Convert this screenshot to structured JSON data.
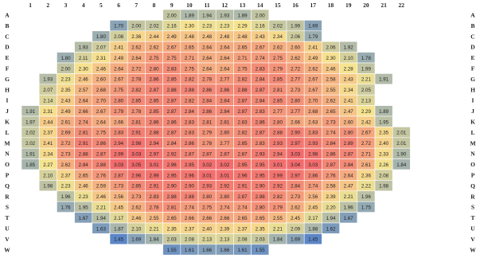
{
  "chart_data": {
    "type": "heatmap",
    "title": "",
    "columns": [
      "1",
      "2",
      "3",
      "4",
      "5",
      "6",
      "7",
      "8",
      "9",
      "10",
      "11",
      "12",
      "13",
      "14",
      "15",
      "16",
      "17",
      "18",
      "19",
      "20",
      "21",
      "22"
    ],
    "rows": [
      "A",
      "B",
      "C",
      "D",
      "E",
      "F",
      "G",
      "H",
      "I",
      "J",
      "K",
      "L",
      "M",
      "N",
      "O",
      "P",
      "Q",
      "R",
      "S",
      "T",
      "U",
      "V",
      "W"
    ],
    "colormap": {
      "low": "#5b86c7",
      "mid": "#f6e590",
      "high": "#f2616a"
    },
    "value_range": [
      1.45,
      3.1
    ],
    "cells": [
      [
        null,
        null,
        null,
        null,
        null,
        null,
        null,
        null,
        2.0,
        1.89,
        1.94,
        1.93,
        1.89,
        2.0,
        null,
        null,
        null,
        null,
        null,
        null,
        null,
        null
      ],
      [
        null,
        null,
        null,
        null,
        null,
        1.7,
        2.0,
        2.02,
        2.16,
        2.3,
        2.23,
        2.23,
        2.29,
        2.16,
        2.02,
        1.99,
        1.69,
        null,
        null,
        null,
        null,
        null
      ],
      [
        null,
        null,
        null,
        null,
        1.8,
        2.08,
        2.36,
        2.44,
        2.49,
        2.48,
        2.48,
        2.48,
        2.48,
        2.43,
        2.34,
        2.06,
        1.79,
        null,
        null,
        null,
        null,
        null
      ],
      [
        null,
        null,
        null,
        1.93,
        2.07,
        2.41,
        2.62,
        2.62,
        2.67,
        2.65,
        2.64,
        2.64,
        2.65,
        2.67,
        2.62,
        2.6,
        2.41,
        2.06,
        1.92,
        null,
        null,
        null
      ],
      [
        null,
        null,
        1.8,
        2.11,
        2.31,
        2.49,
        2.64,
        2.75,
        2.75,
        2.71,
        2.64,
        2.64,
        2.71,
        2.74,
        2.75,
        2.62,
        2.49,
        2.3,
        2.1,
        1.78,
        null,
        null
      ],
      [
        null,
        null,
        2.0,
        2.3,
        2.46,
        2.64,
        2.72,
        2.8,
        2.83,
        2.75,
        2.64,
        2.64,
        2.75,
        2.83,
        2.79,
        2.72,
        2.62,
        2.46,
        2.28,
        1.99,
        null,
        null
      ],
      [
        null,
        1.93,
        2.23,
        2.46,
        2.6,
        2.67,
        2.78,
        2.86,
        2.85,
        2.82,
        2.78,
        2.77,
        2.82,
        2.84,
        2.85,
        2.77,
        2.67,
        2.58,
        2.43,
        2.21,
        1.91,
        null
      ],
      [
        null,
        2.07,
        2.35,
        2.57,
        2.68,
        2.75,
        2.82,
        2.87,
        2.88,
        2.88,
        2.86,
        2.86,
        2.88,
        2.87,
        2.81,
        2.73,
        2.67,
        2.55,
        2.34,
        2.05,
        null,
        null
      ],
      [
        null,
        2.14,
        2.43,
        2.64,
        2.7,
        2.8,
        2.85,
        2.85,
        2.87,
        2.82,
        2.84,
        2.84,
        2.87,
        2.84,
        2.85,
        2.8,
        2.7,
        2.62,
        2.41,
        2.13,
        null,
        null
      ],
      [
        1.91,
        2.31,
        2.49,
        2.66,
        2.67,
        2.79,
        2.78,
        2.85,
        2.87,
        2.84,
        2.86,
        2.84,
        2.87,
        2.83,
        2.77,
        2.77,
        2.68,
        2.65,
        2.47,
        2.29,
        1.89,
        null
      ],
      [
        1.97,
        2.44,
        2.61,
        2.74,
        2.64,
        2.66,
        2.81,
        2.86,
        2.86,
        2.83,
        2.81,
        2.81,
        2.83,
        2.86,
        2.8,
        2.66,
        2.63,
        2.73,
        2.6,
        2.42,
        1.95,
        null
      ],
      [
        2.02,
        2.37,
        2.69,
        2.81,
        2.75,
        2.83,
        2.91,
        2.88,
        2.87,
        2.83,
        2.79,
        2.8,
        2.82,
        2.87,
        2.88,
        2.9,
        2.83,
        2.74,
        2.8,
        2.67,
        2.35,
        2.01
      ],
      [
        2.02,
        2.41,
        2.72,
        2.91,
        2.86,
        2.94,
        2.98,
        2.94,
        2.84,
        2.86,
        2.78,
        2.77,
        2.85,
        2.83,
        2.93,
        2.97,
        2.93,
        2.84,
        2.89,
        2.72,
        2.4,
        2.01
      ],
      [
        1.91,
        2.34,
        2.73,
        2.88,
        2.87,
        2.99,
        3.03,
        2.97,
        2.92,
        2.87,
        2.87,
        2.87,
        2.87,
        2.93,
        2.94,
        3.03,
        2.98,
        2.86,
        2.87,
        2.71,
        2.33,
        1.9
      ],
      [
        1.85,
        2.27,
        2.62,
        2.84,
        2.88,
        3.03,
        3.05,
        3.01,
        2.96,
        2.95,
        3.02,
        3.02,
        2.95,
        2.95,
        3.01,
        3.04,
        3.03,
        2.87,
        2.84,
        2.61,
        2.26,
        1.84
      ],
      [
        null,
        2.1,
        2.37,
        2.65,
        2.76,
        2.87,
        2.96,
        2.99,
        2.95,
        2.96,
        3.01,
        3.01,
        2.96,
        2.95,
        2.99,
        2.97,
        2.86,
        2.76,
        2.64,
        2.36,
        2.08,
        null
      ],
      [
        null,
        1.98,
        2.23,
        2.46,
        2.59,
        2.73,
        2.85,
        2.91,
        2.9,
        2.9,
        2.93,
        2.92,
        2.91,
        2.9,
        2.92,
        2.84,
        2.74,
        2.58,
        2.47,
        2.22,
        1.98,
        null
      ],
      [
        null,
        null,
        1.96,
        2.23,
        2.46,
        2.56,
        2.73,
        2.83,
        2.88,
        2.88,
        2.8,
        2.8,
        2.87,
        2.88,
        2.82,
        2.73,
        2.56,
        2.39,
        2.21,
        1.96,
        null,
        null
      ],
      [
        null,
        null,
        1.76,
        1.95,
        2.21,
        2.45,
        2.62,
        2.78,
        2.81,
        2.74,
        2.75,
        2.74,
        2.74,
        2.8,
        2.79,
        2.62,
        2.45,
        2.2,
        1.96,
        1.75,
        null,
        null
      ],
      [
        null,
        null,
        null,
        1.67,
        1.94,
        2.17,
        2.46,
        2.55,
        2.65,
        2.66,
        2.66,
        2.66,
        2.65,
        2.65,
        2.55,
        2.45,
        2.17,
        1.94,
        1.67,
        null,
        null,
        null
      ],
      [
        null,
        null,
        null,
        null,
        1.63,
        1.87,
        2.1,
        2.21,
        2.35,
        2.37,
        2.4,
        2.39,
        2.37,
        2.35,
        2.21,
        2.09,
        1.88,
        1.62,
        null,
        null,
        null,
        null
      ],
      [
        null,
        null,
        null,
        null,
        null,
        1.45,
        1.69,
        1.84,
        2.03,
        2.08,
        2.13,
        2.13,
        2.08,
        2.03,
        1.84,
        1.69,
        1.45,
        null,
        null,
        null,
        null,
        null
      ],
      [
        null,
        null,
        null,
        null,
        null,
        null,
        null,
        null,
        1.55,
        1.61,
        1.66,
        1.66,
        1.61,
        1.55,
        null,
        null,
        null,
        null,
        null,
        null,
        null,
        null
      ]
    ]
  }
}
